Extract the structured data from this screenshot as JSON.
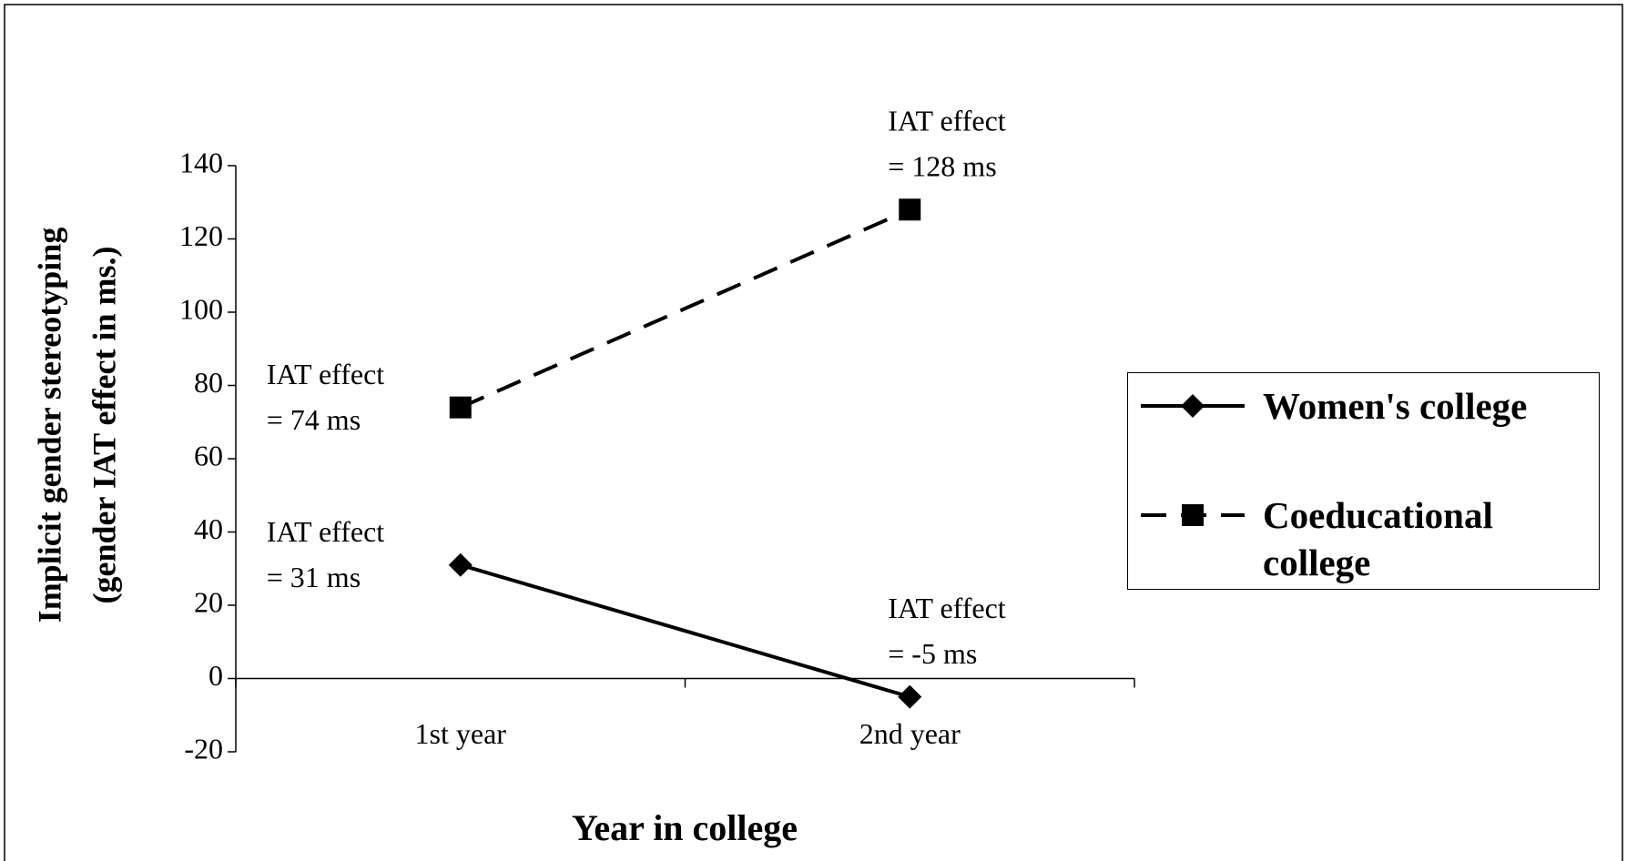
{
  "chart_data": {
    "type": "line",
    "categories": [
      "1st year",
      "2nd year"
    ],
    "series": [
      {
        "name": "Women's college",
        "color": "#000000",
        "dash": "solid",
        "marker": "diamond",
        "values": [
          31,
          -5
        ],
        "value_labels": [
          [
            "IAT effect",
            "= 31 ms"
          ],
          [
            "IAT effect",
            "= -5 ms"
          ]
        ]
      },
      {
        "name": "Coeducational college",
        "color": "#000000",
        "dash": "dashed",
        "marker": "square",
        "values": [
          74,
          128
        ],
        "value_labels": [
          [
            "IAT effect",
            "= 74 ms"
          ],
          [
            "IAT effect",
            "= 128 ms"
          ]
        ]
      }
    ],
    "xlabel": "Year in college",
    "ylabel": [
      "Implicit gender stereotyping",
      "(gender IAT effect in ms.)"
    ],
    "ylim": [
      -20,
      140
    ],
    "yticks": [
      -20,
      0,
      20,
      40,
      60,
      80,
      100,
      120,
      140
    ],
    "grid": false,
    "legend": "right"
  }
}
